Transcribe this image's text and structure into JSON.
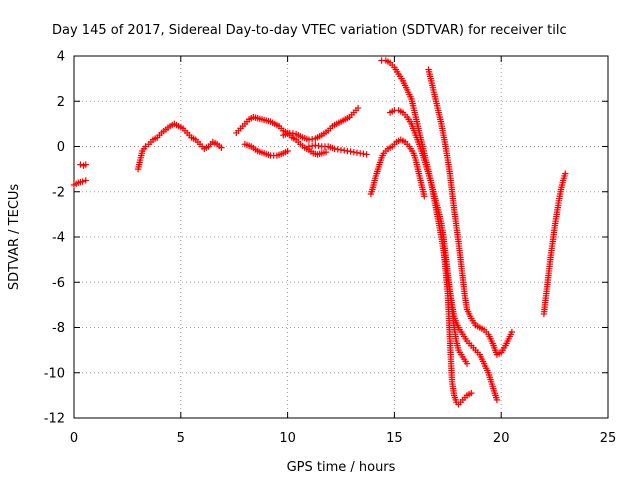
{
  "chart_data": {
    "type": "scatter",
    "title": "Day 145 of 2017, Sidereal Day-to-day VTEC variation (SDTVAR) for receiver tilc",
    "xlabel": "GPS time / hours",
    "ylabel": "SDTVAR / TECUs",
    "xlim": [
      0,
      25
    ],
    "ylim": [
      -12,
      4
    ],
    "xticks": [
      "0",
      "5",
      "10",
      "15",
      "20",
      "25"
    ],
    "yticks": [
      "4",
      "2",
      "0",
      "-2",
      "-4",
      "-6",
      "-8",
      "-10",
      "-12"
    ],
    "grid": true,
    "legend": "none",
    "marker": "plus",
    "color": "#ff0000",
    "series": [
      {
        "points": [
          [
            0.0,
            -1.7
          ],
          [
            0.2,
            -1.6
          ],
          [
            0.4,
            -1.55
          ],
          [
            0.55,
            -1.5
          ]
        ]
      },
      {
        "points": [
          [
            0.3,
            -0.8
          ],
          [
            0.45,
            -0.85
          ],
          [
            0.55,
            -0.8
          ]
        ]
      },
      {
        "points": [
          [
            3.0,
            -1.0
          ],
          [
            3.1,
            -0.6
          ],
          [
            3.2,
            -0.2
          ],
          [
            3.35,
            0.0
          ],
          [
            3.5,
            0.1
          ],
          [
            3.7,
            0.3
          ],
          [
            3.9,
            0.4
          ],
          [
            4.1,
            0.6
          ],
          [
            4.3,
            0.75
          ],
          [
            4.5,
            0.9
          ],
          [
            4.7,
            1.0
          ],
          [
            4.9,
            0.9
          ],
          [
            5.1,
            0.8
          ],
          [
            5.3,
            0.6
          ],
          [
            5.5,
            0.4
          ],
          [
            5.7,
            0.3
          ],
          [
            5.9,
            0.1
          ],
          [
            6.1,
            -0.1
          ],
          [
            6.3,
            0.0
          ],
          [
            6.5,
            0.2
          ],
          [
            6.7,
            0.1
          ],
          [
            6.9,
            -0.05
          ]
        ]
      },
      {
        "points": [
          [
            7.6,
            0.6
          ],
          [
            7.8,
            0.8
          ],
          [
            8.0,
            1.0
          ],
          [
            8.2,
            1.2
          ],
          [
            8.4,
            1.3
          ],
          [
            8.6,
            1.25
          ],
          [
            8.8,
            1.2
          ],
          [
            9.0,
            1.15
          ],
          [
            9.2,
            1.1
          ],
          [
            9.4,
            1.0
          ],
          [
            9.6,
            0.9
          ],
          [
            9.8,
            0.7
          ],
          [
            10.0,
            0.6
          ],
          [
            10.2,
            0.4
          ],
          [
            10.4,
            0.3
          ],
          [
            10.6,
            0.1
          ],
          [
            10.8,
            -0.05
          ],
          [
            11.0,
            -0.15
          ],
          [
            11.2,
            -0.3
          ],
          [
            11.4,
            -0.35
          ],
          [
            11.6,
            -0.3
          ],
          [
            11.8,
            -0.25
          ]
        ]
      },
      {
        "points": [
          [
            8.0,
            0.1
          ],
          [
            8.3,
            0.0
          ],
          [
            8.6,
            -0.2
          ],
          [
            8.9,
            -0.3
          ],
          [
            9.2,
            -0.4
          ],
          [
            9.5,
            -0.4
          ],
          [
            9.8,
            -0.3
          ],
          [
            10.0,
            -0.2
          ]
        ]
      },
      {
        "points": [
          [
            9.8,
            0.5
          ],
          [
            10.1,
            0.6
          ],
          [
            10.4,
            0.55
          ],
          [
            10.7,
            0.4
          ],
          [
            11.0,
            0.3
          ],
          [
            11.3,
            0.35
          ],
          [
            11.6,
            0.5
          ],
          [
            11.9,
            0.7
          ],
          [
            12.1,
            0.9
          ],
          [
            12.3,
            1.0
          ],
          [
            12.5,
            1.1
          ],
          [
            12.7,
            1.2
          ],
          [
            12.9,
            1.3
          ],
          [
            13.1,
            1.5
          ],
          [
            13.3,
            1.7
          ]
        ]
      },
      {
        "points": [
          [
            11.0,
            0.0
          ],
          [
            11.3,
            0.05
          ],
          [
            11.6,
            0.0
          ],
          [
            11.9,
            0.0
          ],
          [
            12.2,
            -0.1
          ],
          [
            12.5,
            -0.15
          ],
          [
            12.8,
            -0.2
          ],
          [
            13.1,
            -0.25
          ],
          [
            13.4,
            -0.3
          ],
          [
            13.7,
            -0.35
          ]
        ]
      },
      {
        "points": [
          [
            13.9,
            -2.1
          ],
          [
            14.0,
            -1.8
          ],
          [
            14.1,
            -1.4
          ],
          [
            14.2,
            -1.1
          ],
          [
            14.3,
            -0.8
          ],
          [
            14.4,
            -0.5
          ],
          [
            14.5,
            -0.3
          ],
          [
            14.7,
            -0.1
          ],
          [
            14.9,
            0.0
          ],
          [
            15.1,
            0.2
          ],
          [
            15.3,
            0.3
          ],
          [
            15.5,
            0.2
          ],
          [
            15.7,
            0.0
          ],
          [
            15.9,
            -0.3
          ],
          [
            16.0,
            -0.6
          ],
          [
            16.1,
            -1.0
          ],
          [
            16.2,
            -1.4
          ],
          [
            16.3,
            -1.8
          ],
          [
            16.4,
            -2.2
          ]
        ]
      },
      {
        "points": [
          [
            14.4,
            3.8
          ],
          [
            14.6,
            3.8
          ],
          [
            14.8,
            3.7
          ],
          [
            15.0,
            3.5
          ],
          [
            15.2,
            3.2
          ],
          [
            15.4,
            2.9
          ],
          [
            15.6,
            2.5
          ],
          [
            15.8,
            2.1
          ],
          [
            15.9,
            1.7
          ],
          [
            16.0,
            1.3
          ],
          [
            16.1,
            0.9
          ],
          [
            16.2,
            0.5
          ],
          [
            16.3,
            0.1
          ],
          [
            16.4,
            -0.3
          ],
          [
            16.5,
            -0.7
          ],
          [
            16.6,
            -1.1
          ],
          [
            16.7,
            -1.5
          ],
          [
            16.8,
            -2.0
          ],
          [
            16.9,
            -2.5
          ],
          [
            17.0,
            -3.0
          ],
          [
            17.1,
            -3.5
          ],
          [
            17.2,
            -4.0
          ],
          [
            17.3,
            -4.6
          ],
          [
            17.4,
            -5.2
          ],
          [
            17.5,
            -5.8
          ],
          [
            17.6,
            -6.4
          ],
          [
            17.7,
            -7.0
          ],
          [
            17.8,
            -7.5
          ],
          [
            17.9,
            -7.8
          ],
          [
            18.0,
            -8.0
          ],
          [
            18.2,
            -8.3
          ],
          [
            18.4,
            -8.6
          ],
          [
            18.6,
            -8.8
          ],
          [
            18.8,
            -9.0
          ],
          [
            19.0,
            -9.2
          ],
          [
            19.2,
            -9.6
          ],
          [
            19.4,
            -10.0
          ],
          [
            19.6,
            -10.6
          ],
          [
            19.8,
            -11.2
          ]
        ]
      },
      {
        "points": [
          [
            14.8,
            1.5
          ],
          [
            15.0,
            1.6
          ],
          [
            15.2,
            1.6
          ],
          [
            15.4,
            1.5
          ],
          [
            15.6,
            1.3
          ],
          [
            15.8,
            1.0
          ],
          [
            16.0,
            0.5
          ],
          [
            16.2,
            0.0
          ],
          [
            16.4,
            -0.6
          ],
          [
            16.6,
            -1.2
          ],
          [
            16.8,
            -1.9
          ],
          [
            17.0,
            -2.6
          ],
          [
            17.2,
            -3.4
          ],
          [
            17.3,
            -4.0
          ],
          [
            17.4,
            -4.8
          ],
          [
            17.5,
            -5.6
          ],
          [
            17.6,
            -6.4
          ],
          [
            17.7,
            -7.2
          ],
          [
            17.8,
            -8.0
          ],
          [
            17.9,
            -8.6
          ],
          [
            18.0,
            -9.0
          ],
          [
            18.2,
            -9.3
          ],
          [
            18.4,
            -9.6
          ]
        ]
      },
      {
        "points": [
          [
            16.6,
            3.4
          ],
          [
            16.7,
            3.0
          ],
          [
            16.8,
            2.6
          ],
          [
            16.9,
            2.2
          ],
          [
            17.0,
            1.8
          ],
          [
            17.1,
            1.4
          ],
          [
            17.2,
            1.0
          ],
          [
            17.3,
            0.5
          ],
          [
            17.4,
            0.0
          ],
          [
            17.5,
            -0.6
          ],
          [
            17.6,
            -1.2
          ],
          [
            17.7,
            -2.0
          ],
          [
            17.8,
            -2.8
          ],
          [
            17.9,
            -3.5
          ],
          [
            18.0,
            -4.2
          ],
          [
            18.1,
            -5.0
          ],
          [
            18.2,
            -5.8
          ],
          [
            18.3,
            -6.6
          ],
          [
            18.4,
            -7.2
          ],
          [
            18.6,
            -7.6
          ],
          [
            18.8,
            -7.9
          ],
          [
            19.0,
            -8.0
          ],
          [
            19.2,
            -8.1
          ],
          [
            19.4,
            -8.3
          ],
          [
            19.6,
            -8.7
          ],
          [
            19.8,
            -9.2
          ],
          [
            20.0,
            -9.1
          ],
          [
            20.2,
            -8.8
          ],
          [
            20.4,
            -8.4
          ],
          [
            20.5,
            -8.2
          ]
        ]
      },
      {
        "points": [
          [
            17.3,
            -4.5
          ],
          [
            17.4,
            -5.5
          ],
          [
            17.5,
            -6.5
          ],
          [
            17.55,
            -7.5
          ],
          [
            17.6,
            -8.5
          ],
          [
            17.65,
            -9.5
          ],
          [
            17.7,
            -10.4
          ],
          [
            17.8,
            -11.0
          ],
          [
            17.9,
            -11.3
          ],
          [
            18.0,
            -11.4
          ],
          [
            18.2,
            -11.2
          ],
          [
            18.4,
            -11.0
          ],
          [
            18.6,
            -10.9
          ]
        ]
      },
      {
        "points": [
          [
            22.0,
            -7.4
          ],
          [
            22.1,
            -6.6
          ],
          [
            22.2,
            -5.8
          ],
          [
            22.3,
            -5.0
          ],
          [
            22.4,
            -4.3
          ],
          [
            22.5,
            -3.6
          ],
          [
            22.6,
            -3.0
          ],
          [
            22.7,
            -2.4
          ],
          [
            22.8,
            -1.9
          ],
          [
            22.9,
            -1.5
          ],
          [
            23.0,
            -1.2
          ]
        ]
      }
    ]
  }
}
